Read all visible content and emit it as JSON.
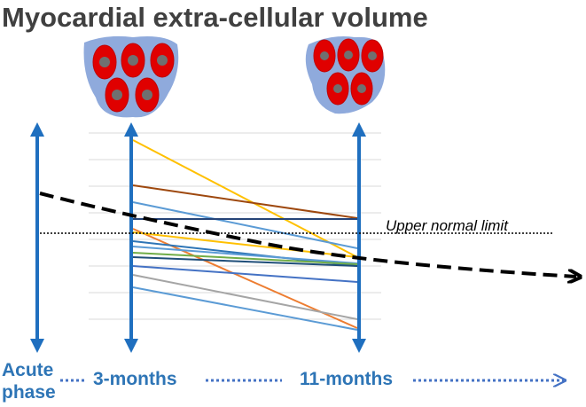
{
  "header": {
    "title": "Myocardial extra-cellular volume"
  },
  "annotations": {
    "reference_line": "Upper normal limit"
  },
  "timepoints": [
    {
      "lines": [
        "Acute",
        "phase"
      ]
    },
    {
      "lines": [
        "3-months"
      ]
    },
    {
      "lines": [
        "11-months"
      ]
    }
  ]
}
